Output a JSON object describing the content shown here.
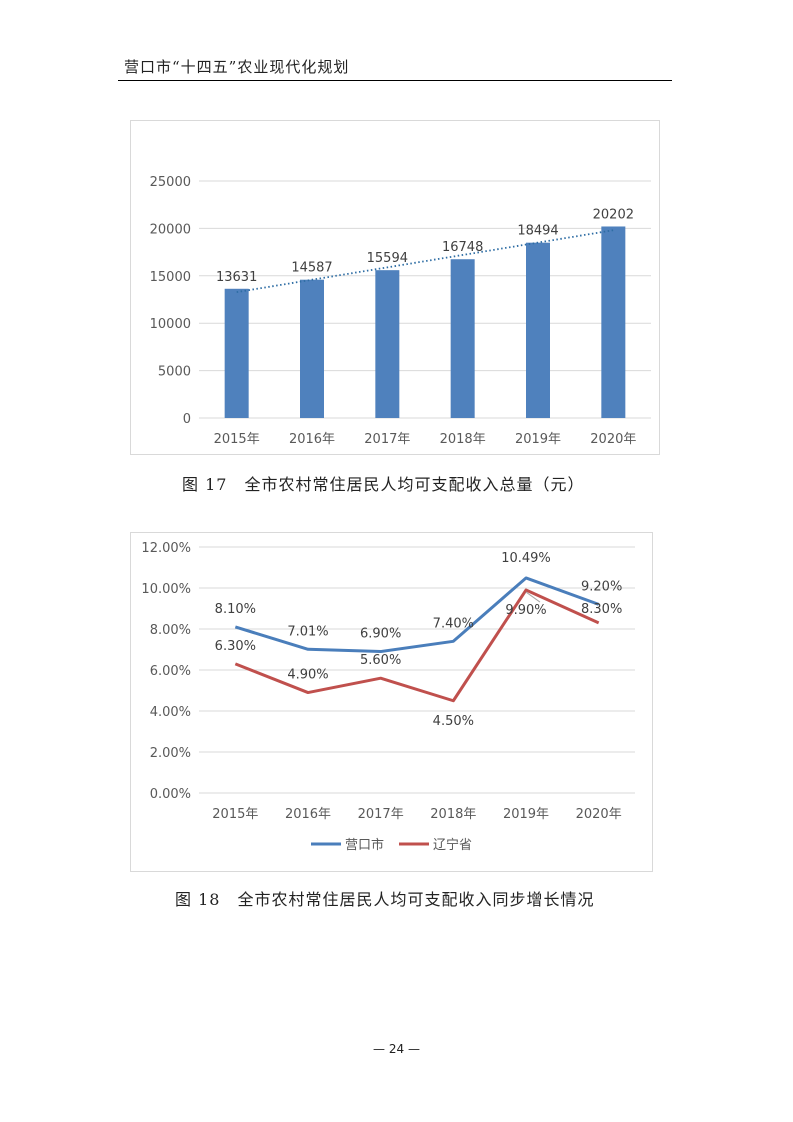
{
  "header": {
    "title": "营口市“十四五”农业现代化规划"
  },
  "figure1": {
    "caption": "图 17　全市农村常住居民人均可支配收入总量（元）",
    "chart_data": {
      "type": "bar",
      "categories": [
        "2015年",
        "2016年",
        "2017年",
        "2018年",
        "2019年",
        "2020年"
      ],
      "values": [
        13631,
        14587,
        15594,
        16748,
        18494,
        20202
      ],
      "data_labels": [
        "13631",
        "14587",
        "15594",
        "16748",
        "18494",
        "20202"
      ],
      "ylim": [
        0,
        25000
      ],
      "yticks": [
        0,
        5000,
        10000,
        15000,
        20000,
        25000
      ],
      "ytick_labels": [
        "0",
        "5000",
        "10000",
        "15000",
        "20000",
        "25000"
      ],
      "trendline": "linear-dotted",
      "grid": true,
      "bar_color": "#4f81bd",
      "trend_color": "#2e6da4"
    }
  },
  "figure2": {
    "caption": "图 18　全市农村常住居民人均可支配收入同步增长情况",
    "chart_data": {
      "type": "line",
      "categories": [
        "2015年",
        "2016年",
        "2017年",
        "2018年",
        "2019年",
        "2020年"
      ],
      "series": [
        {
          "name": "营口市",
          "color": "#4a7ebb",
          "values": [
            8.1,
            7.01,
            6.9,
            7.4,
            10.49,
            9.2
          ],
          "labels": [
            "8.10%",
            "7.01%",
            "6.90%",
            "7.40%",
            "10.49%",
            "9.20%"
          ]
        },
        {
          "name": "辽宁省",
          "color": "#c0504d",
          "values": [
            6.3,
            4.9,
            5.6,
            4.5,
            9.9,
            8.3
          ],
          "labels": [
            "6.30%",
            "4.90%",
            "5.60%",
            "4.50%",
            "9.90%",
            "8.30%"
          ]
        }
      ],
      "ylim": [
        0,
        12
      ],
      "yticks": [
        0,
        2,
        4,
        6,
        8,
        10,
        12
      ],
      "ytick_labels": [
        "0.00%",
        "2.00%",
        "4.00%",
        "6.00%",
        "8.00%",
        "10.00%",
        "12.00%"
      ],
      "grid": true,
      "legend": "bottom"
    }
  },
  "footer": {
    "page_number": "— 24 —"
  }
}
